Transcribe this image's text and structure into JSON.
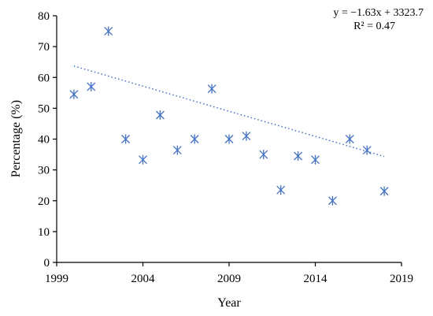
{
  "chart_data": {
    "type": "scatter",
    "title": "",
    "xlabel": "Year",
    "ylabel": "Percentage (%)",
    "xlim": [
      1999,
      2019
    ],
    "ylim": [
      0,
      80
    ],
    "x_ticks": [
      "1999",
      "2004",
      "2009",
      "2014",
      "2019"
    ],
    "y_ticks": [
      "0",
      "10",
      "20",
      "30",
      "40",
      "50",
      "60",
      "70",
      "80"
    ],
    "grid": false,
    "marker": "asterisk",
    "marker_color": "#4472c4",
    "series": [
      {
        "x": [
          2000,
          2001,
          2002,
          2003,
          2004,
          2005,
          2006,
          2007,
          2008,
          2009,
          2010,
          2011,
          2012,
          2013,
          2014,
          2015,
          2016,
          2017,
          2018
        ],
        "y": [
          54.5,
          57.0,
          75.0,
          40.0,
          33.3,
          47.8,
          36.4,
          40.0,
          56.3,
          40.0,
          41.0,
          35.0,
          23.5,
          34.5,
          33.3,
          20.0,
          40.0,
          36.4,
          23.1
        ]
      }
    ],
    "trendline": {
      "type": "linear",
      "slope": -1.63,
      "intercept": 3323.7,
      "style": "dotted",
      "color": "#4472c4",
      "equation_label": "y = −1.63x + 3323.7",
      "r2_label": "R² = 0.47"
    }
  }
}
